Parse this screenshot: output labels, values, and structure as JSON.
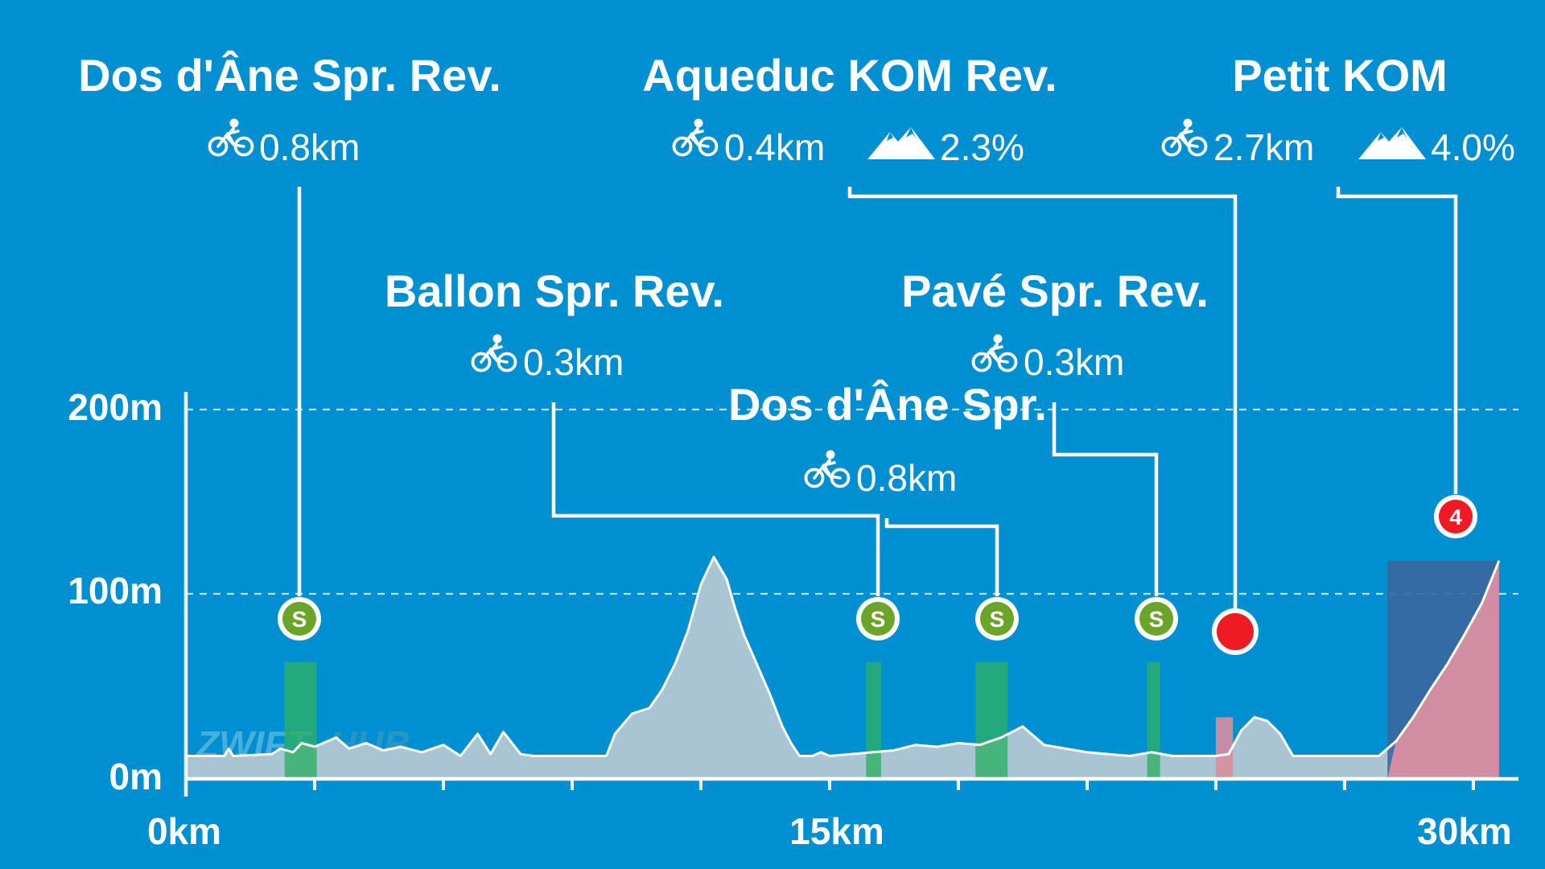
{
  "chart_data": {
    "type": "area",
    "title": "",
    "xlabel": "",
    "ylabel": "",
    "x_unit": "km",
    "y_unit": "m",
    "xlim": [
      0,
      30.7
    ],
    "ylim": [
      0,
      215
    ],
    "x_ticks": [
      0,
      3,
      6,
      9,
      12,
      15,
      18,
      21,
      24,
      27,
      30
    ],
    "x_tick_labels": [
      {
        "value": 0,
        "label": "0km"
      },
      {
        "value": 15,
        "label": "15km"
      },
      {
        "value": 30,
        "label": "30km"
      }
    ],
    "y_tick_labels": [
      {
        "value": 0,
        "label": "0m"
      },
      {
        "value": 100,
        "label": "100m"
      },
      {
        "value": 200,
        "label": "200m"
      }
    ],
    "gridlines_y": [
      100,
      200
    ],
    "grid_style": "dashed",
    "watermark": "ZWIFTHUB",
    "elevation_profile": {
      "x": [
        0,
        0.9,
        1.0,
        1.1,
        2.0,
        2.2,
        2.5,
        2.7,
        3.0,
        3.5,
        3.8,
        4.2,
        4.6,
        5.0,
        5.5,
        6.0,
        6.4,
        6.8,
        7.1,
        7.4,
        7.8,
        8.1,
        8.4,
        8.8,
        9.2,
        9.8,
        10.0,
        10.4,
        10.8,
        11.1,
        11.4,
        11.7,
        12.0,
        12.3,
        12.6,
        12.8,
        13.0,
        13.3,
        13.6,
        13.9,
        14.1,
        14.3,
        14.6,
        14.8,
        15.0,
        15.5,
        16.0,
        16.5,
        17.0,
        17.5,
        18.0,
        18.5,
        19.0,
        19.5,
        20.0,
        20.5,
        21.0,
        21.5,
        22.0,
        22.5,
        23.0,
        23.5,
        24.0,
        24.3,
        24.6,
        24.9,
        25.2,
        25.5,
        25.8,
        26.3,
        27.0,
        27.4,
        27.8,
        28.2,
        28.6,
        29.0,
        29.4,
        29.8,
        30.2,
        30.6
      ],
      "y": [
        12,
        12,
        16,
        12,
        13,
        16,
        14,
        19,
        17,
        22,
        16,
        19,
        15,
        17,
        14,
        18,
        12,
        24,
        13,
        25,
        13,
        12,
        12,
        12,
        12,
        12,
        24,
        35,
        38,
        48,
        62,
        80,
        105,
        120,
        108,
        92,
        78,
        62,
        46,
        28,
        19,
        12,
        12,
        14,
        12,
        13,
        14,
        15,
        18,
        17,
        19,
        18,
        22,
        28,
        18,
        16,
        14,
        13,
        12,
        14,
        12,
        12,
        12,
        13,
        26,
        33,
        31,
        24,
        12,
        12,
        12,
        12,
        12,
        20,
        33,
        48,
        62,
        78,
        95,
        118
      ]
    },
    "segments": [
      {
        "name": "Dos d'Âne Spr. Rev.",
        "type": "sprint",
        "marker": "S",
        "length": "0.8km",
        "x_start": 2.3,
        "x_end": 3.05
      },
      {
        "name": "Ballon Spr. Rev.",
        "type": "sprint",
        "marker": "S",
        "length": "0.3km",
        "x_start": 15.85,
        "x_end": 16.2
      },
      {
        "name": "Dos d'Âne Spr.",
        "type": "sprint",
        "marker": "S",
        "length": "0.8km",
        "x_start": 18.4,
        "x_end": 19.15
      },
      {
        "name": "Pavé Spr. Rev.",
        "type": "sprint",
        "marker": "S",
        "length": "0.3km",
        "x_start": 22.4,
        "x_end": 22.7
      },
      {
        "name": "Aqueduc KOM Rev.",
        "type": "climb",
        "marker": "",
        "length": "0.4km",
        "grade": "2.3%",
        "x_start": 24.0,
        "x_end": 24.4
      },
      {
        "name": "Petit KOM",
        "type": "climb",
        "marker": "4",
        "length": "2.7km",
        "grade": "4.0%",
        "x_start": 28.0,
        "x_end": 30.6
      }
    ],
    "colors": {
      "background": "#0090d1",
      "profile_fill": "#a9c5d3",
      "profile_line": "#ffffff",
      "sprint_band": "#2cb064",
      "sprint_marker": "#6aa52a",
      "climb_band": "#d98ea1",
      "climb_marker": "#ee1b24",
      "kom_box": "#3a679f"
    }
  },
  "labels": {
    "seg1_title": "Dos d'Âne Spr. Rev.",
    "seg1_length": "0.8km",
    "seg2_title": "Aqueduc KOM Rev.",
    "seg2_length": "0.4km",
    "seg2_grade": "2.3%",
    "seg3_title": "Petit KOM",
    "seg3_length": "2.7km",
    "seg3_grade": "4.0%",
    "seg4_title": "Ballon Spr. Rev.",
    "seg4_length": "0.3km",
    "seg5_title": "Pavé Spr. Rev.",
    "seg5_length": "0.3km",
    "seg6_title": "Dos d'Âne Spr.",
    "seg6_length": "0.8km",
    "sprint_marker_letter": "S",
    "kom_category": "4",
    "watermark_zwift": "ZWIFT",
    "watermark_hub": "HUB"
  },
  "icons": {
    "length": "bicycle-icon",
    "grade": "mountain-icon"
  }
}
